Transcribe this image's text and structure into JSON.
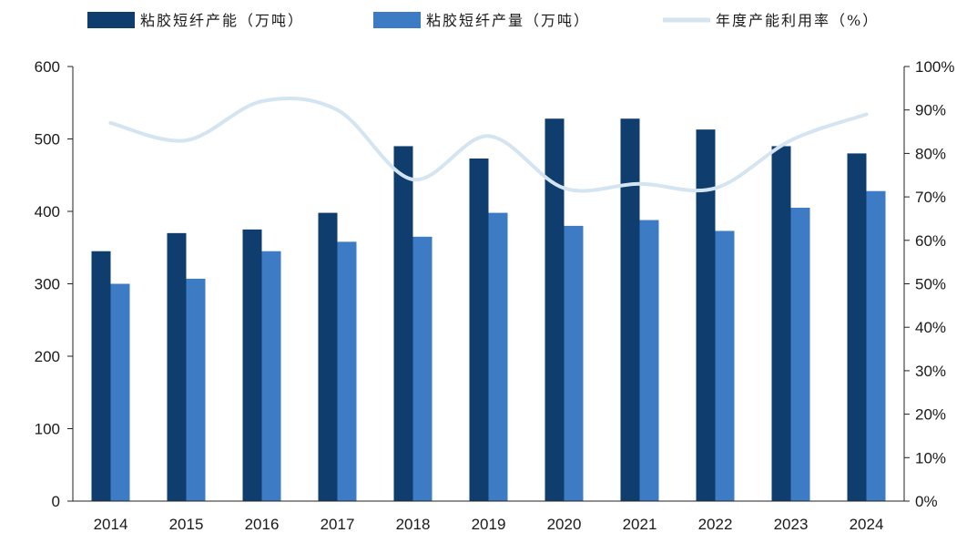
{
  "chart_data": {
    "type": "bar",
    "categories": [
      "2014",
      "2015",
      "2016",
      "2017",
      "2018",
      "2019",
      "2020",
      "2021",
      "2022",
      "2023",
      "2024"
    ],
    "series": [
      {
        "name": "粘胶短纤产能（万吨）",
        "kind": "bar",
        "axis": "left",
        "color": "#0e3d6e",
        "values": [
          345,
          370,
          375,
          398,
          490,
          473,
          528,
          528,
          513,
          490,
          480
        ]
      },
      {
        "name": "粘胶短纤产量（万吨）",
        "kind": "bar",
        "axis": "left",
        "color": "#3d7cc4",
        "values": [
          300,
          307,
          345,
          358,
          365,
          398,
          380,
          388,
          373,
          405,
          428
        ]
      },
      {
        "name": "年度产能利用率（%）",
        "kind": "line",
        "axis": "right",
        "color": "#d4e5f1",
        "values": [
          87,
          83,
          92,
          90,
          74,
          84,
          72,
          73,
          72,
          83,
          89
        ]
      }
    ],
    "y_left": {
      "range": [
        0,
        600
      ],
      "ticks": [
        "0",
        "100",
        "200",
        "300",
        "400",
        "500",
        "600"
      ]
    },
    "y_right": {
      "range": [
        0,
        100
      ],
      "ticks": [
        "0%",
        "10%",
        "20%",
        "30%",
        "40%",
        "50%",
        "60%",
        "70%",
        "80%",
        "90%",
        "100%"
      ]
    },
    "grid": false,
    "legend_position": "top"
  }
}
